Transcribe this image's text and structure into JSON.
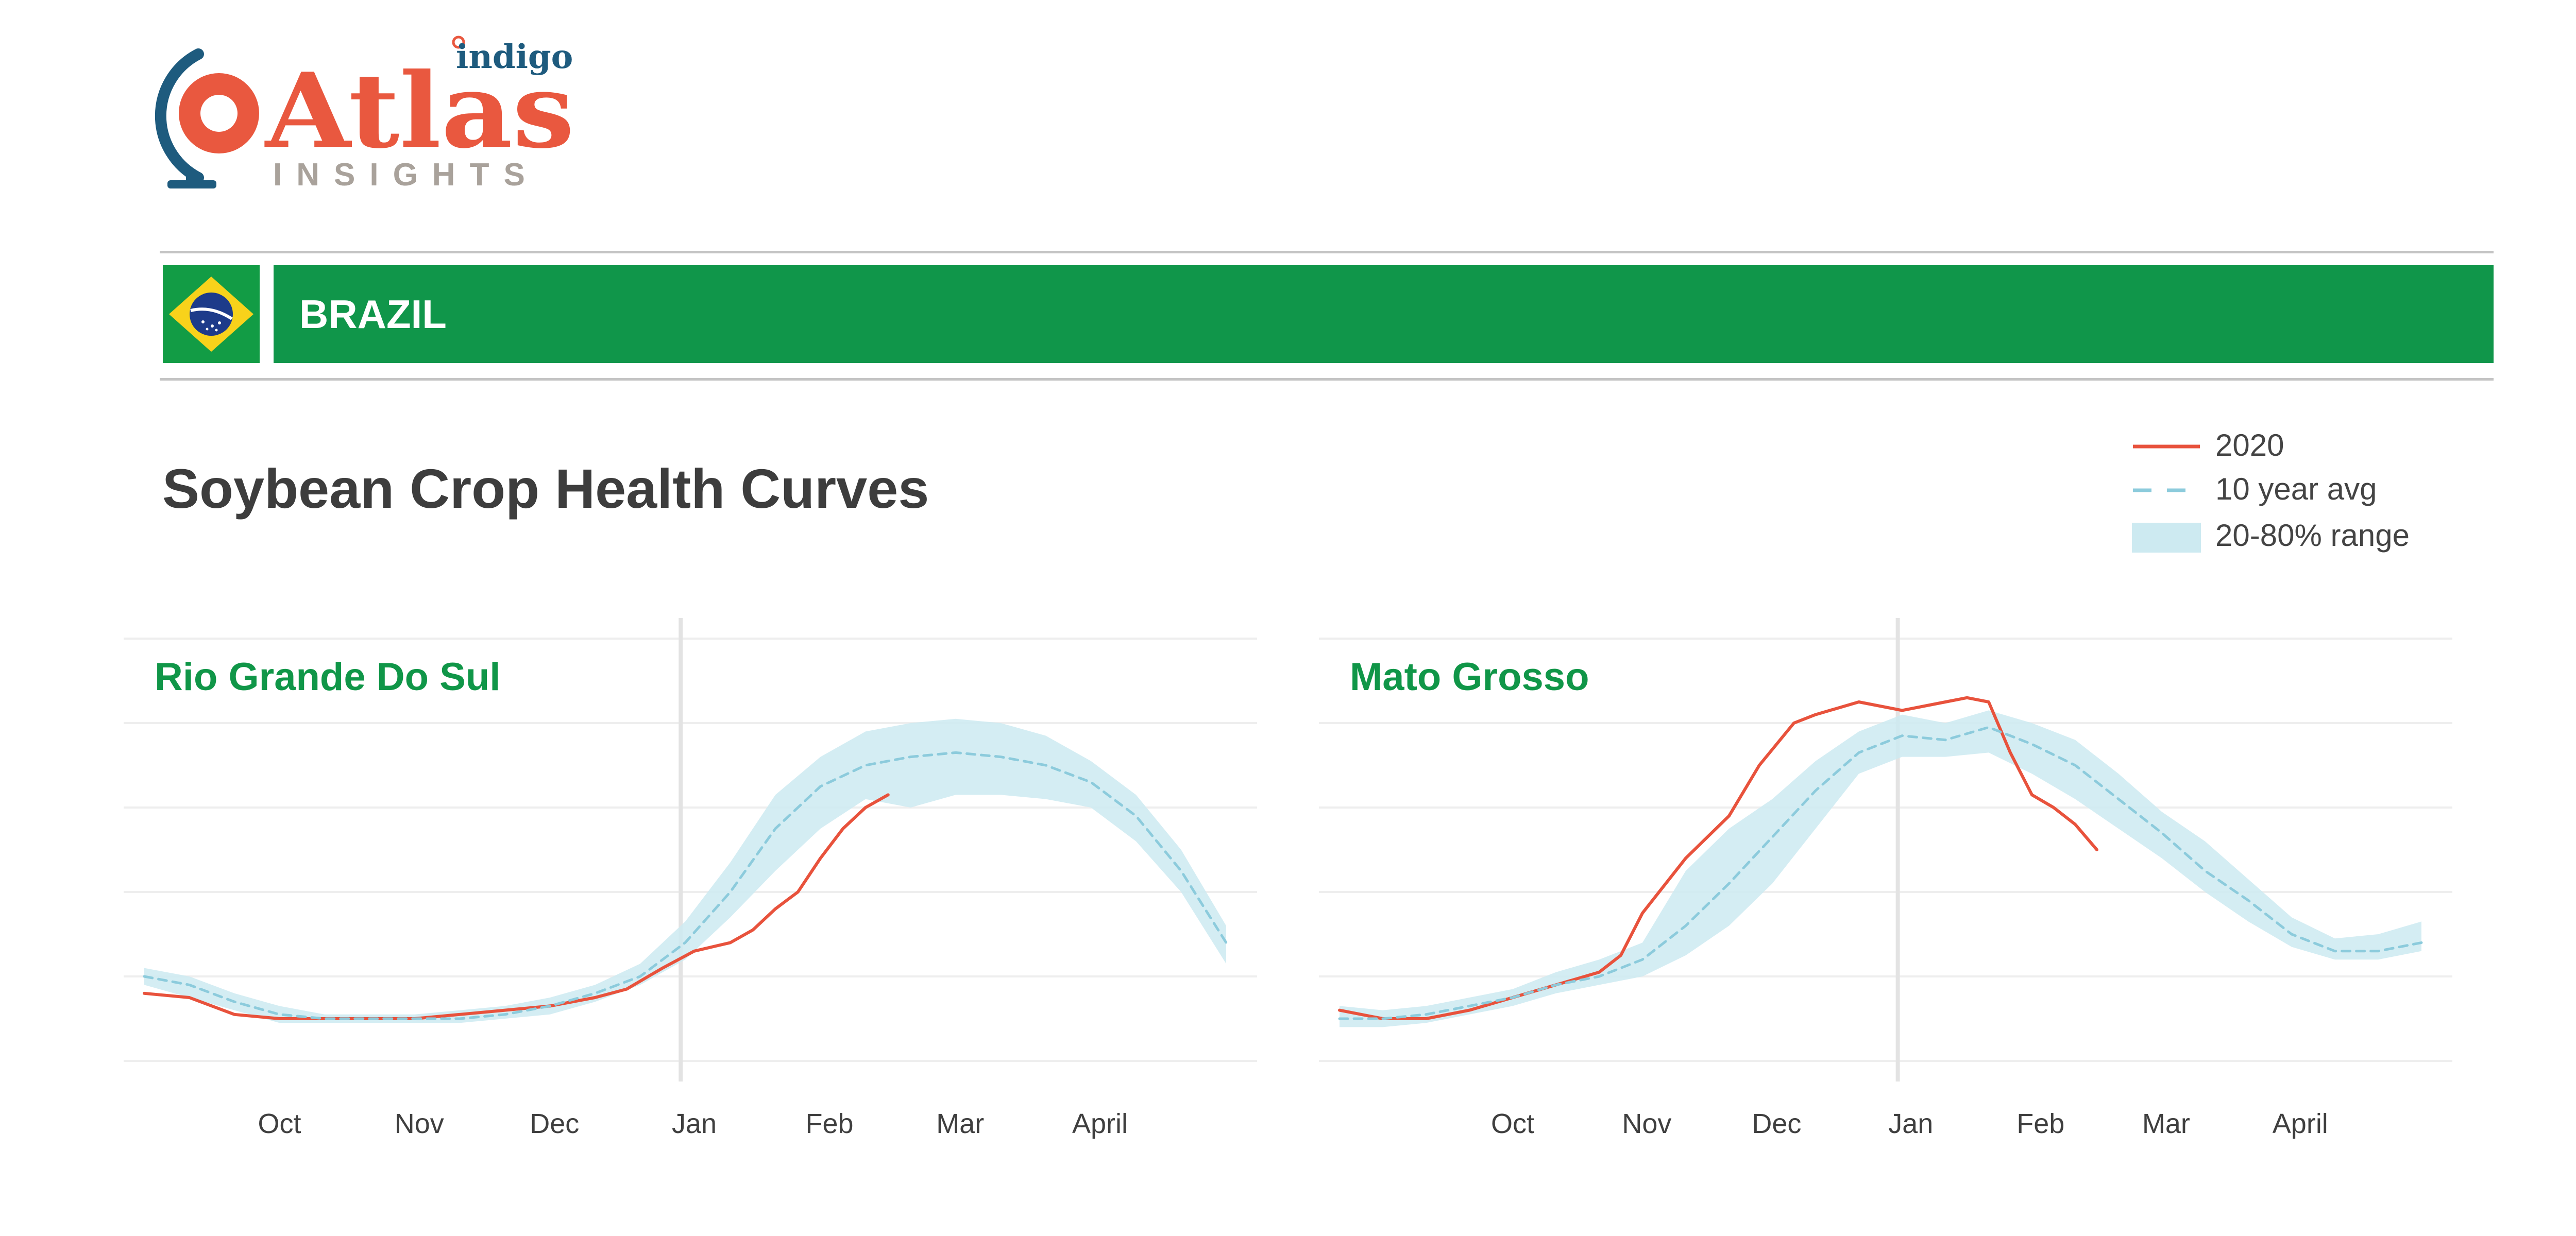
{
  "brand": {
    "sub": "indigo",
    "main": "Atlas",
    "tag": "INSIGHTS"
  },
  "header": {
    "country": "BRAZIL"
  },
  "page": {
    "title": "Soybean Crop Health Curves"
  },
  "legend": [
    {
      "label": "2020",
      "kind": "line"
    },
    {
      "label": "10 year avg",
      "kind": "dashed"
    },
    {
      "label": "20-80% range",
      "kind": "band"
    }
  ],
  "colors": {
    "brand_green": "#10964a",
    "title_green": "#109648",
    "line_2020": "#e8523c",
    "avg": "#8ccbdc",
    "band": "#cdeaf1",
    "logo_red": "#e9583f",
    "logo_blue": "#1e5b7e"
  },
  "chart_data": [
    {
      "type": "line",
      "title": "Rio Grande Do Sul",
      "x_unit": "day",
      "x_ticks": [
        {
          "label": "Oct",
          "x": 30
        },
        {
          "label": "Nov",
          "x": 61
        },
        {
          "label": "Dec",
          "x": 91
        },
        {
          "label": "Jan",
          "x": 122
        },
        {
          "label": "Feb",
          "x": 152
        },
        {
          "label": "Mar",
          "x": 181
        },
        {
          "label": "April",
          "x": 212
        }
      ],
      "today_x": 119,
      "xlim": [
        0,
        240
      ],
      "ylim": [
        0,
        1
      ],
      "series": [
        {
          "name": "2020",
          "x": [
            0,
            10,
            20,
            30,
            40,
            50,
            60,
            70,
            80,
            90,
            100,
            107,
            115,
            122,
            130,
            135,
            140,
            145,
            150,
            155,
            160,
            165
          ],
          "y": [
            0.16,
            0.15,
            0.11,
            0.1,
            0.1,
            0.1,
            0.1,
            0.11,
            0.12,
            0.13,
            0.15,
            0.17,
            0.22,
            0.26,
            0.28,
            0.31,
            0.36,
            0.4,
            0.48,
            0.55,
            0.6,
            0.63
          ]
        },
        {
          "name": "10 year avg",
          "x": [
            0,
            10,
            20,
            30,
            40,
            50,
            60,
            70,
            80,
            90,
            100,
            110,
            120,
            130,
            140,
            150,
            160,
            170,
            180,
            190,
            200,
            210,
            220,
            230,
            240
          ],
          "y": [
            0.2,
            0.18,
            0.14,
            0.11,
            0.1,
            0.1,
            0.1,
            0.1,
            0.11,
            0.13,
            0.16,
            0.2,
            0.28,
            0.4,
            0.55,
            0.65,
            0.7,
            0.72,
            0.73,
            0.72,
            0.7,
            0.66,
            0.58,
            0.45,
            0.28
          ]
        }
      ],
      "band": {
        "name": "20-80% range",
        "x": [
          0,
          10,
          20,
          30,
          40,
          50,
          60,
          70,
          80,
          90,
          100,
          110,
          120,
          130,
          140,
          150,
          160,
          170,
          180,
          190,
          200,
          210,
          220,
          230,
          240
        ],
        "low": [
          0.18,
          0.15,
          0.12,
          0.09,
          0.09,
          0.09,
          0.09,
          0.09,
          0.1,
          0.11,
          0.14,
          0.18,
          0.24,
          0.34,
          0.45,
          0.55,
          0.62,
          0.6,
          0.63,
          0.63,
          0.62,
          0.6,
          0.52,
          0.4,
          0.23
        ],
        "high": [
          0.22,
          0.2,
          0.16,
          0.13,
          0.11,
          0.11,
          0.11,
          0.12,
          0.13,
          0.15,
          0.18,
          0.23,
          0.33,
          0.47,
          0.63,
          0.72,
          0.78,
          0.8,
          0.81,
          0.8,
          0.77,
          0.71,
          0.63,
          0.5,
          0.32
        ]
      }
    },
    {
      "type": "line",
      "title": "Mato Grosso",
      "x_unit": "day",
      "x_ticks": [
        {
          "label": "Oct",
          "x": 40
        },
        {
          "label": "Nov",
          "x": 71
        },
        {
          "label": "Dec",
          "x": 101
        },
        {
          "label": "Jan",
          "x": 132
        },
        {
          "label": "Feb",
          "x": 162
        },
        {
          "label": "Mar",
          "x": 191
        },
        {
          "label": "April",
          "x": 222
        }
      ],
      "today_x": 129,
      "xlim": [
        0,
        250
      ],
      "ylim": [
        0,
        1
      ],
      "series": [
        {
          "name": "2020",
          "x": [
            0,
            10,
            20,
            30,
            40,
            50,
            60,
            65,
            70,
            80,
            90,
            97,
            105,
            110,
            120,
            130,
            140,
            145,
            150,
            155,
            160,
            165,
            170,
            175
          ],
          "y": [
            0.12,
            0.1,
            0.1,
            0.12,
            0.15,
            0.18,
            0.21,
            0.25,
            0.35,
            0.48,
            0.58,
            0.7,
            0.8,
            0.82,
            0.85,
            0.83,
            0.85,
            0.86,
            0.85,
            0.73,
            0.63,
            0.6,
            0.56,
            0.5
          ]
        },
        {
          "name": "10 year avg",
          "x": [
            0,
            10,
            20,
            30,
            40,
            50,
            60,
            70,
            80,
            90,
            100,
            110,
            120,
            130,
            140,
            150,
            160,
            170,
            180,
            190,
            200,
            210,
            220,
            230,
            240,
            250
          ],
          "y": [
            0.1,
            0.1,
            0.11,
            0.13,
            0.15,
            0.18,
            0.2,
            0.24,
            0.32,
            0.42,
            0.53,
            0.64,
            0.73,
            0.77,
            0.76,
            0.79,
            0.75,
            0.7,
            0.62,
            0.54,
            0.45,
            0.38,
            0.3,
            0.26,
            0.26,
            0.28
          ]
        }
      ],
      "band": {
        "name": "20-80% range",
        "x": [
          0,
          10,
          20,
          30,
          40,
          50,
          60,
          70,
          80,
          90,
          100,
          110,
          120,
          130,
          140,
          150,
          160,
          170,
          180,
          190,
          200,
          210,
          220,
          230,
          240,
          250
        ],
        "low": [
          0.08,
          0.08,
          0.09,
          0.11,
          0.13,
          0.16,
          0.18,
          0.2,
          0.25,
          0.32,
          0.42,
          0.55,
          0.68,
          0.72,
          0.72,
          0.73,
          0.68,
          0.62,
          0.55,
          0.48,
          0.4,
          0.33,
          0.27,
          0.24,
          0.24,
          0.26
        ],
        "high": [
          0.13,
          0.12,
          0.13,
          0.15,
          0.17,
          0.21,
          0.24,
          0.28,
          0.45,
          0.55,
          0.62,
          0.71,
          0.78,
          0.82,
          0.8,
          0.83,
          0.8,
          0.76,
          0.68,
          0.59,
          0.52,
          0.43,
          0.34,
          0.29,
          0.3,
          0.33
        ]
      }
    }
  ]
}
